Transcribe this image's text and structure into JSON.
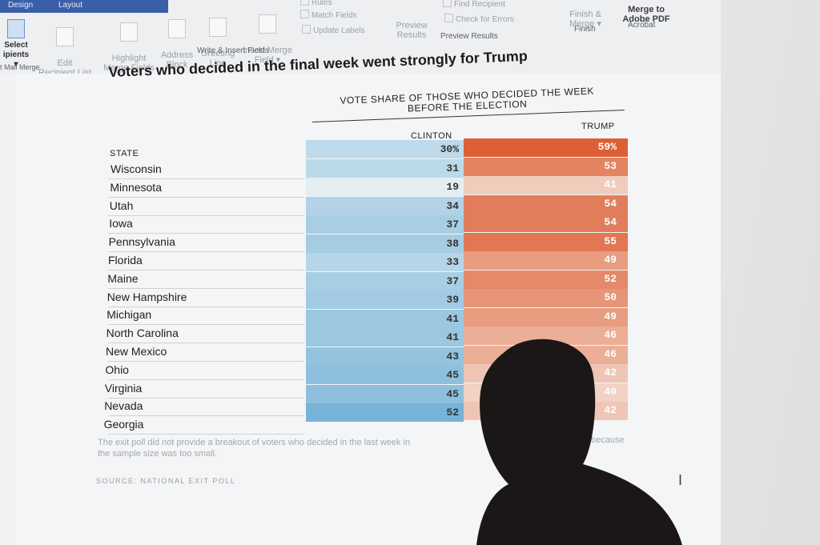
{
  "ribbon": {
    "tabs": [
      "Design",
      "Layout"
    ],
    "buttons": {
      "select_recipients": "Select",
      "select_recipients_sub": "ipients ▾",
      "edit_recipient_list": "Edit\nRecipient List",
      "highlight_merge_fields": "Highlight\nMerge Fields",
      "address_block": "Address\nBlock",
      "greeting_line": "Greeting\nLine",
      "insert_merge_field": "Insert Merge\nField ▾",
      "rules": "Rules",
      "match_fields": "Match Fields",
      "update_labels": "Update Labels",
      "preview_results": "Preview\nResults",
      "find_recipient": "Find Recipient",
      "check_for_errors": "Check for Errors",
      "finish_merge": "Finish &\nMerge ▾",
      "merge_to_adobe_pdf": "Merge to\nAdobe PDF"
    },
    "groups": {
      "start_mail_merge": "t Mail Merge",
      "write_insert_fields": "Write & Insert Fields",
      "preview_results": "Preview Results",
      "finish": "Finish",
      "acrobat": "Acrobat"
    }
  },
  "slide": {
    "title": "Voters who decided in the final week went strongly for Trump",
    "column_header": "VOTE SHARE OF THOSE WHO DECIDED THE WEEK BEFORE THE ELECTION",
    "state_header": "STATE",
    "clinton_header": "CLINTON",
    "trump_header": "TRUMP",
    "note_left": "The exit poll did not provide a breakout of voters who decided in the last week in",
    "note_right": "because",
    "note_line2": "the sample size was too small.",
    "source": "SOURCE: NATIONAL EXIT POLL",
    "cursor": "I"
  },
  "chart_data": {
    "type": "table",
    "title": "Voters who decided in the final week went strongly for Trump",
    "columns": [
      "STATE",
      "CLINTON",
      "TRUMP"
    ],
    "rows": [
      {
        "state": "Wisconsin",
        "clinton": "30%",
        "trump": "59%"
      },
      {
        "state": "Minnesota",
        "clinton": "31",
        "trump": "53"
      },
      {
        "state": "Utah",
        "clinton": "19",
        "trump": "41"
      },
      {
        "state": "Iowa",
        "clinton": "34",
        "trump": "54"
      },
      {
        "state": "Pennsylvania",
        "clinton": "37",
        "trump": "54"
      },
      {
        "state": "Florida",
        "clinton": "38",
        "trump": "55"
      },
      {
        "state": "Maine",
        "clinton": "33",
        "trump": "49"
      },
      {
        "state": "New Hampshire",
        "clinton": "37",
        "trump": "52"
      },
      {
        "state": "Michigan",
        "clinton": "39",
        "trump": "50"
      },
      {
        "state": "North Carolina",
        "clinton": "41",
        "trump": "49"
      },
      {
        "state": "New Mexico",
        "clinton": "41",
        "trump": "46"
      },
      {
        "state": "Ohio",
        "clinton": "43",
        "trump": "46"
      },
      {
        "state": "Virginia",
        "clinton": "45",
        "trump": "42"
      },
      {
        "state": "Nevada",
        "clinton": "45",
        "trump": "40"
      },
      {
        "state": "Georgia",
        "clinton": "52",
        "trump": "42"
      }
    ]
  },
  "colors": {
    "clinton_low": "#e3eef3",
    "clinton_high": "#77b3d8",
    "trump_low": "#f1d2c4",
    "trump_high": "#dd5f35",
    "ribbon_tab_bar": "#3b5ea8"
  }
}
